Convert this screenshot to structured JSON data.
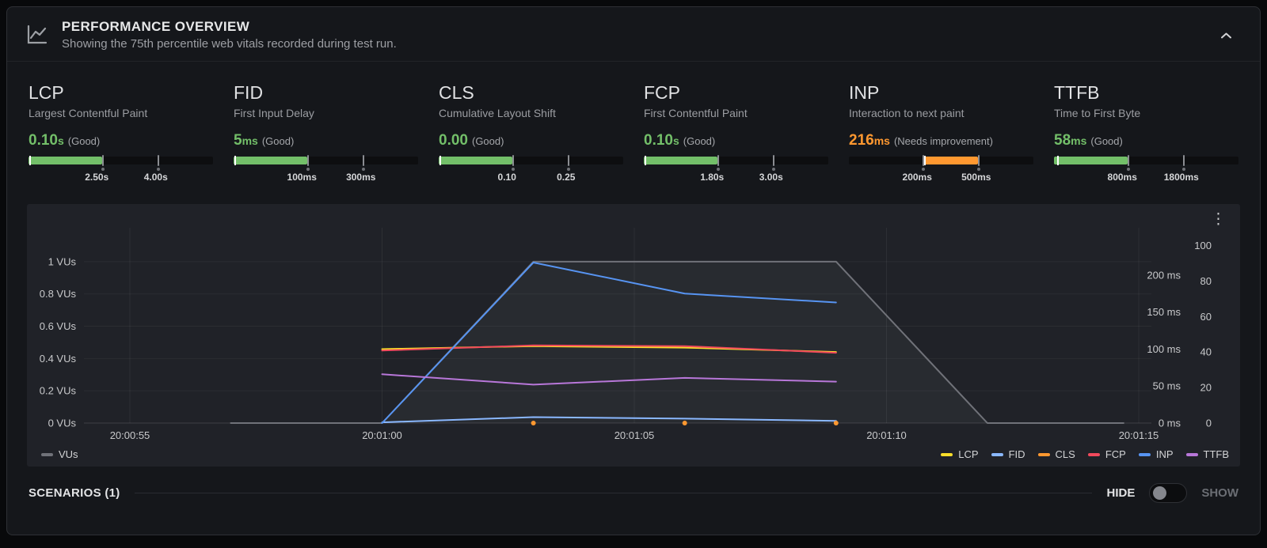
{
  "header": {
    "title": "PERFORMANCE OVERVIEW",
    "subtitle": "Showing the 75th percentile web vitals recorded during test run."
  },
  "icons": {
    "kebab": "⋮"
  },
  "vitals": {
    "cards": [
      {
        "name": "LCP",
        "full_name": "Largest Contentful Paint",
        "value": "0.10",
        "unit": "s",
        "rating": "(Good)",
        "color": "#73bf69",
        "zone": "good",
        "thresholds": [
          "2.50s",
          "4.00s"
        ],
        "marker_pct": 1
      },
      {
        "name": "FID",
        "full_name": "First Input Delay",
        "value": "5",
        "unit": "ms",
        "rating": "(Good)",
        "color": "#73bf69",
        "zone": "good",
        "thresholds": [
          "100ms",
          "300ms"
        ],
        "marker_pct": 1
      },
      {
        "name": "CLS",
        "full_name": "Cumulative Layout Shift",
        "value": "0.00",
        "unit": "",
        "rating": "(Good)",
        "color": "#73bf69",
        "zone": "good",
        "thresholds": [
          "0.10",
          "0.25"
        ],
        "marker_pct": 1
      },
      {
        "name": "FCP",
        "full_name": "First Contentful Paint",
        "value": "0.10",
        "unit": "s",
        "rating": "(Good)",
        "color": "#73bf69",
        "zone": "good",
        "thresholds": [
          "1.80s",
          "3.00s"
        ],
        "marker_pct": 1
      },
      {
        "name": "INP",
        "full_name": "Interaction to next paint",
        "value": "216",
        "unit": "ms",
        "rating": "(Needs improvement)",
        "color": "#ff9830",
        "zone": "mid",
        "thresholds": [
          "200ms",
          "500ms"
        ],
        "marker_pct": 41
      },
      {
        "name": "TTFB",
        "full_name": "Time to First Byte",
        "value": "58",
        "unit": "ms",
        "rating": "(Good)",
        "color": "#73bf69",
        "zone": "good",
        "thresholds": [
          "800ms",
          "1800ms"
        ],
        "marker_pct": 2
      }
    ]
  },
  "chart_data": {
    "type": "line",
    "title": "",
    "grid": true,
    "legend_position": "bottom",
    "x_ticks": [
      "20:00:55",
      "20:01:00",
      "20:01:05",
      "20:01:10",
      "20:01:15"
    ],
    "x_tick_seconds": [
      0,
      5,
      10,
      15,
      20
    ],
    "axes": {
      "left": {
        "unit": "VUs",
        "ticks": [
          "0 VUs",
          "0.2 VUs",
          "0.4 VUs",
          "0.6 VUs",
          "0.8 VUs",
          "1 VUs"
        ],
        "tick_values": [
          0,
          0.2,
          0.4,
          0.6,
          0.8,
          1
        ],
        "max": 1.21
      },
      "right_ms": {
        "unit": "ms",
        "ticks": [
          "0 ms",
          "50 ms",
          "100 ms",
          "150 ms",
          "200 ms"
        ],
        "tick_values": [
          0,
          50,
          100,
          150,
          200
        ],
        "max": 264
      },
      "right_score": {
        "unit": "",
        "ticks": [
          "0",
          "20",
          "40",
          "60",
          "80",
          "100"
        ],
        "tick_values": [
          0,
          20,
          40,
          60,
          80,
          100
        ],
        "max": 110
      }
    },
    "series": [
      {
        "name": "VUs",
        "color": "#707279",
        "axis": "left",
        "style": "line",
        "area_fill": true,
        "points": [
          [
            2,
            0
          ],
          [
            5,
            0
          ],
          [
            8,
            1
          ],
          [
            14,
            1
          ],
          [
            17,
            0
          ],
          [
            19.7,
            0
          ]
        ]
      },
      {
        "name": "LCP",
        "color": "#fade2a",
        "axis": "right_ms",
        "style": "line",
        "points": [
          [
            5,
            100
          ],
          [
            8,
            104
          ],
          [
            11,
            102
          ],
          [
            14,
            96
          ]
        ]
      },
      {
        "name": "FID",
        "color": "#8ab8ff",
        "axis": "right_ms",
        "style": "line",
        "points": [
          [
            5,
            1
          ],
          [
            8,
            8
          ],
          [
            11,
            6
          ],
          [
            14,
            3
          ]
        ]
      },
      {
        "name": "CLS",
        "color": "#ff9830",
        "axis": "right_ms",
        "style": "points",
        "points": [
          [
            8,
            0
          ],
          [
            11,
            0
          ],
          [
            14,
            0
          ]
        ]
      },
      {
        "name": "FCP",
        "color": "#f2495c",
        "axis": "right_ms",
        "style": "line",
        "points": [
          [
            5,
            98
          ],
          [
            8,
            105
          ],
          [
            11,
            104
          ],
          [
            14,
            95
          ]
        ]
      },
      {
        "name": "INP",
        "color": "#5794f2",
        "axis": "right_ms",
        "style": "line",
        "points": [
          [
            5,
            0
          ],
          [
            8,
            217
          ],
          [
            11,
            175
          ],
          [
            14,
            163
          ]
        ]
      },
      {
        "name": "TTFB",
        "color": "#b877d9",
        "axis": "right_ms",
        "style": "line",
        "points": [
          [
            5,
            66
          ],
          [
            8,
            52
          ],
          [
            11,
            61
          ],
          [
            14,
            56
          ]
        ]
      }
    ]
  },
  "scenarios": {
    "label": "SCENARIOS (1)",
    "hide": "HIDE",
    "show": "SHOW"
  }
}
